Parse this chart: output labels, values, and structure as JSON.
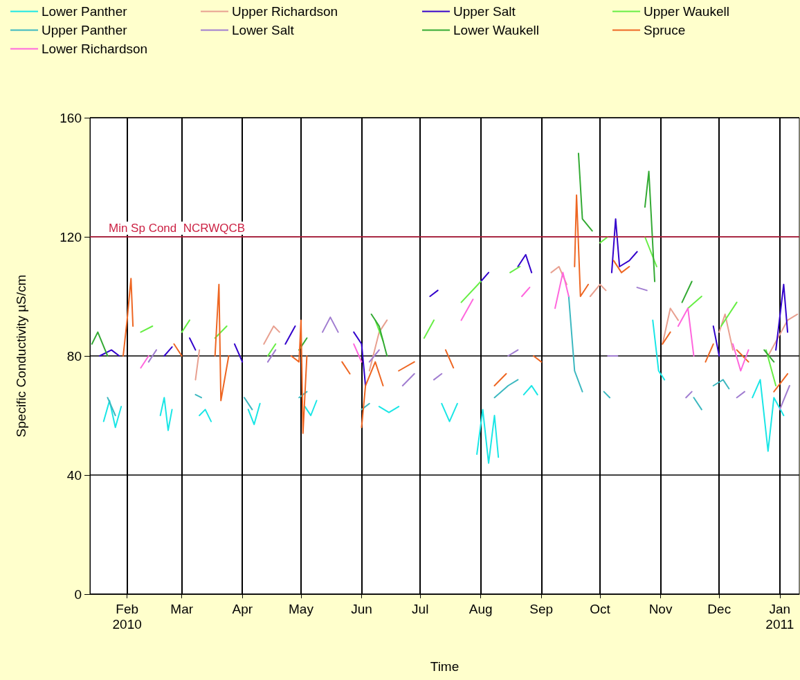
{
  "chart_data": {
    "type": "line",
    "xlabel": "Time",
    "ylabel": "Specific Conductivity µS/cm",
    "xlim": [
      "2010-01-13",
      "2011-01-11"
    ],
    "ylim": [
      0,
      160
    ],
    "yticks": [
      0,
      40,
      80,
      120,
      160
    ],
    "xticks": [
      {
        "value": "2010-02-01",
        "label": "Feb\n2010"
      },
      {
        "value": "2010-03-01",
        "label": "Mar"
      },
      {
        "value": "2010-04-01",
        "label": "Apr"
      },
      {
        "value": "2010-05-01",
        "label": "May"
      },
      {
        "value": "2010-06-01",
        "label": "Jun"
      },
      {
        "value": "2010-07-01",
        "label": "Jul"
      },
      {
        "value": "2010-08-01",
        "label": "Aug"
      },
      {
        "value": "2010-09-01",
        "label": "Sep"
      },
      {
        "value": "2010-10-01",
        "label": "Oct"
      },
      {
        "value": "2010-11-01",
        "label": "Nov"
      },
      {
        "value": "2010-12-01",
        "label": "Dec"
      },
      {
        "value": "2011-01-01",
        "label": "Jan\n2011"
      }
    ],
    "grid": true,
    "legend": "top left",
    "marker": "none",
    "line_style": "solid",
    "ref_lines": [
      {
        "axis": "y",
        "value": 120,
        "label": "Min Sp Cond  NCRWQCB",
        "color": "#cc2244"
      }
    ],
    "series": [
      {
        "name": "Lower Panther",
        "color": "#19e6e6",
        "x": [
          "2010-01-20",
          "2010-01-23",
          "2010-01-26",
          "2010-01-29",
          "2010-02-01",
          "2010-02-18",
          "2010-02-20",
          "2010-02-22",
          "2010-02-24",
          "2010-02-26",
          "2010-03-10",
          "2010-03-13",
          "2010-03-16",
          "2010-03-20",
          "2010-04-04",
          "2010-04-07",
          "2010-04-10",
          "2010-04-20",
          "2010-05-03",
          "2010-05-06",
          "2010-05-09",
          "2010-05-20",
          "2010-06-10",
          "2010-06-15",
          "2010-06-20",
          "2010-06-25",
          "2010-07-12",
          "2010-07-16",
          "2010-07-20",
          "2010-07-25",
          "2010-07-30",
          "2010-08-02",
          "2010-08-05",
          "2010-08-08",
          "2010-08-10",
          "2010-08-15",
          "2010-08-23",
          "2010-08-27",
          "2010-08-30",
          "2010-09-05",
          "2010-10-28",
          "2010-10-31",
          "2010-11-03",
          "2010-11-10",
          "2010-12-18",
          "2010-12-22",
          "2010-12-26",
          "2010-12-29",
          "2011-01-03"
        ],
        "values": [
          58,
          65,
          56,
          63,
          null,
          60,
          66,
          55,
          62,
          null,
          60,
          62,
          58,
          null,
          62,
          57,
          64,
          null,
          63,
          60,
          65,
          null,
          63,
          61,
          63,
          null,
          64,
          58,
          64,
          null,
          47,
          62,
          44,
          60,
          46,
          null,
          67,
          70,
          67,
          null,
          92,
          75,
          72,
          null,
          66,
          72,
          48,
          66,
          60
        ]
      },
      {
        "name": "Upper Richardson",
        "color": "#e8a090",
        "x": [
          "2010-03-08",
          "2010-03-10",
          "2010-03-12",
          "2010-04-12",
          "2010-04-17",
          "2010-04-20",
          "2010-04-25",
          "2010-06-05",
          "2010-06-10",
          "2010-06-14",
          "2010-06-20",
          "2010-09-06",
          "2010-09-10",
          "2010-09-14",
          "2010-09-20",
          "2010-09-26",
          "2010-10-01",
          "2010-10-04",
          "2010-10-10",
          "2010-11-02",
          "2010-11-06",
          "2010-11-10",
          "2010-11-20",
          "2010-12-01",
          "2010-12-04",
          "2010-12-08",
          "2010-12-15",
          "2010-12-26",
          "2011-01-05",
          "2011-01-10"
        ],
        "values": [
          72,
          82,
          null,
          84,
          90,
          88,
          null,
          75,
          88,
          92,
          null,
          108,
          110,
          104,
          null,
          100,
          104,
          102,
          null,
          84,
          96,
          92,
          null,
          88,
          94,
          82,
          null,
          80,
          92,
          94
        ]
      },
      {
        "name": "Upper Salt",
        "color": "#3300cc",
        "x": [
          "2010-01-18",
          "2010-01-24",
          "2010-01-28",
          "2010-02-05",
          "2010-02-20",
          "2010-02-24",
          "2010-03-01",
          "2010-03-05",
          "2010-03-08",
          "2010-03-15",
          "2010-03-28",
          "2010-04-01",
          "2010-04-05",
          "2010-04-23",
          "2010-04-28",
          "2010-05-05",
          "2010-05-28",
          "2010-06-01",
          "2010-06-03",
          "2010-06-10",
          "2010-07-06",
          "2010-07-10",
          "2010-07-20",
          "2010-08-01",
          "2010-08-05",
          "2010-08-10",
          "2010-08-20",
          "2010-08-24",
          "2010-08-27",
          "2010-09-10",
          "2010-10-07",
          "2010-10-09",
          "2010-10-11",
          "2010-10-16",
          "2010-10-20",
          "2010-11-01",
          "2010-11-28",
          "2010-12-01",
          "2010-12-10",
          "2010-12-30",
          "2011-01-03",
          "2011-01-05"
        ],
        "values": [
          80,
          82,
          80,
          null,
          80,
          83,
          null,
          86,
          82,
          null,
          84,
          78,
          null,
          84,
          90,
          null,
          88,
          84,
          70,
          null,
          100,
          102,
          null,
          105,
          108,
          null,
          110,
          114,
          108,
          null,
          108,
          126,
          110,
          112,
          115,
          null,
          90,
          80,
          null,
          82,
          104,
          88
        ]
      },
      {
        "name": "Upper Waukell",
        "color": "#66ee44",
        "x": [
          "2010-02-08",
          "2010-02-14",
          "2010-02-20",
          "2010-03-01",
          "2010-03-05",
          "2010-03-10",
          "2010-03-18",
          "2010-03-24",
          "2010-04-01",
          "2010-04-14",
          "2010-04-18",
          "2010-04-25",
          "2010-06-08",
          "2010-06-12",
          "2010-06-20",
          "2010-07-03",
          "2010-07-08",
          "2010-07-15",
          "2010-07-22",
          "2010-08-01",
          "2010-08-08",
          "2010-08-16",
          "2010-08-21",
          "2010-09-01",
          "2010-10-01",
          "2010-10-05",
          "2010-10-15",
          "2010-10-24",
          "2010-10-30",
          "2010-11-05",
          "2010-11-15",
          "2010-11-22",
          "2010-11-28",
          "2010-12-02",
          "2010-12-10",
          "2010-12-18",
          "2010-12-25",
          "2010-12-30"
        ],
        "values": [
          88,
          90,
          null,
          88,
          92,
          null,
          86,
          90,
          null,
          80,
          84,
          null,
          92,
          85,
          null,
          86,
          92,
          null,
          98,
          105,
          null,
          108,
          110,
          null,
          118,
          120,
          null,
          120,
          110,
          null,
          96,
          100,
          null,
          90,
          98,
          null,
          82,
          70
        ]
      },
      {
        "name": "Upper Panther",
        "color": "#3cb8c0",
        "x": [
          "2010-01-22",
          "2010-01-26",
          "2010-02-01",
          "2010-03-08",
          "2010-03-11",
          "2010-03-15",
          "2010-04-02",
          "2010-04-06",
          "2010-04-15",
          "2010-04-30",
          "2010-05-04",
          "2010-05-15",
          "2010-06-01",
          "2010-06-05",
          "2010-06-10",
          "2010-08-08",
          "2010-08-15",
          "2010-08-20",
          "2010-09-01",
          "2010-09-15",
          "2010-09-18",
          "2010-09-22",
          "2010-09-28",
          "2010-10-03",
          "2010-10-06",
          "2010-10-15",
          "2010-11-18",
          "2010-11-22",
          "2010-11-25",
          "2010-11-28",
          "2010-12-03",
          "2010-12-06"
        ],
        "values": [
          66,
          60,
          null,
          67,
          66,
          null,
          66,
          62,
          null,
          66,
          68,
          null,
          62,
          64,
          null,
          66,
          70,
          72,
          null,
          100,
          75,
          68,
          null,
          68,
          66,
          null,
          66,
          62,
          null,
          70,
          72,
          69
        ]
      },
      {
        "name": "Lower Salt",
        "color": "#a07cd0",
        "x": [
          "2010-02-12",
          "2010-02-16",
          "2010-02-20",
          "2010-04-14",
          "2010-04-18",
          "2010-04-22",
          "2010-05-12",
          "2010-05-16",
          "2010-05-20",
          "2010-05-25",
          "2010-06-05",
          "2010-06-10",
          "2010-06-15",
          "2010-06-22",
          "2010-06-28",
          "2010-07-03",
          "2010-07-08",
          "2010-07-12",
          "2010-07-18",
          "2010-08-15",
          "2010-08-20",
          "2010-08-25",
          "2010-10-05",
          "2010-10-10",
          "2010-10-15",
          "2010-10-20",
          "2010-10-25",
          "2010-11-01",
          "2010-11-14",
          "2010-11-17",
          "2010-11-22",
          "2010-12-10",
          "2010-12-14",
          "2010-12-20",
          "2011-01-01",
          "2011-01-06"
        ],
        "values": [
          78,
          82,
          null,
          78,
          82,
          null,
          88,
          93,
          88,
          null,
          78,
          82,
          null,
          70,
          74,
          null,
          72,
          74,
          null,
          80,
          82,
          null,
          80,
          80,
          null,
          103,
          102,
          null,
          66,
          68,
          null,
          66,
          68,
          null,
          62,
          70
        ]
      },
      {
        "name": "Lower Waukell",
        "color": "#33aa33",
        "x": [
          "2010-01-14",
          "2010-01-17",
          "2010-01-22",
          "2010-02-01",
          "2010-04-30",
          "2010-05-04",
          "2010-05-10",
          "2010-06-06",
          "2010-06-10",
          "2010-06-14",
          "2010-06-20",
          "2010-09-20",
          "2010-09-22",
          "2010-09-27",
          "2010-10-05",
          "2010-10-24",
          "2010-10-26",
          "2010-10-29",
          "2010-11-05",
          "2010-11-12",
          "2010-11-17",
          "2010-11-25",
          "2010-12-24",
          "2010-12-29"
        ],
        "values": [
          84,
          88,
          80,
          null,
          82,
          86,
          null,
          94,
          90,
          80,
          null,
          148,
          126,
          122,
          null,
          130,
          142,
          105,
          null,
          98,
          105,
          null,
          82,
          78
        ]
      },
      {
        "name": "Spruce",
        "color": "#ee6622",
        "x": [
          "2010-01-30",
          "2010-02-01",
          "2010-02-03",
          "2010-02-04",
          "2010-02-10",
          "2010-02-25",
          "2010-03-01",
          "2010-03-05",
          "2010-03-18",
          "2010-03-20",
          "2010-03-21",
          "2010-03-25",
          "2010-04-01",
          "2010-04-26",
          "2010-04-30",
          "2010-05-01",
          "2010-05-02",
          "2010-05-04",
          "2010-05-10",
          "2010-05-22",
          "2010-05-26",
          "2010-05-29",
          "2010-06-01",
          "2010-06-03",
          "2010-06-08",
          "2010-06-12",
          "2010-06-16",
          "2010-06-20",
          "2010-06-28",
          "2010-07-05",
          "2010-07-14",
          "2010-07-18",
          "2010-07-25",
          "2010-08-08",
          "2010-08-14",
          "2010-08-20",
          "2010-08-28",
          "2010-09-01",
          "2010-09-08",
          "2010-09-18",
          "2010-09-19",
          "2010-09-21",
          "2010-09-25",
          "2010-10-01",
          "2010-10-08",
          "2010-10-12",
          "2010-10-16",
          "2010-10-25",
          "2010-11-02",
          "2010-11-06",
          "2010-11-12",
          "2010-11-24",
          "2010-11-28",
          "2010-12-05",
          "2010-12-10",
          "2010-12-16",
          "2010-12-22",
          "2010-12-29",
          "2011-01-05"
        ],
        "values": [
          80,
          92,
          106,
          90,
          null,
          84,
          80,
          null,
          80,
          104,
          65,
          80,
          null,
          80,
          78,
          92,
          54,
          80,
          null,
          78,
          74,
          null,
          56,
          70,
          78,
          70,
          null,
          75,
          78,
          null,
          82,
          76,
          null,
          70,
          74,
          null,
          80,
          78,
          null,
          110,
          134,
          100,
          104,
          null,
          112,
          108,
          110,
          null,
          84,
          88,
          null,
          78,
          84,
          null,
          82,
          78,
          null,
          68,
          74
        ]
      },
      {
        "name": "Lower Richardson",
        "color": "#ff66dd",
        "x": [
          "2010-02-08",
          "2010-02-12",
          "2010-02-18",
          "2010-05-28",
          "2010-06-01",
          "2010-06-05",
          "2010-07-22",
          "2010-07-28",
          "2010-08-05",
          "2010-08-22",
          "2010-08-26",
          "2010-09-01",
          "2010-09-08",
          "2010-09-12",
          "2010-09-15",
          "2010-09-25",
          "2010-11-10",
          "2010-11-15",
          "2010-11-18",
          "2010-11-25",
          "2010-12-08",
          "2010-12-12",
          "2010-12-16"
        ],
        "values": [
          76,
          80,
          null,
          84,
          78,
          null,
          92,
          99,
          null,
          100,
          103,
          null,
          96,
          108,
          100,
          null,
          90,
          96,
          80,
          null,
          84,
          75,
          82
        ]
      }
    ]
  }
}
